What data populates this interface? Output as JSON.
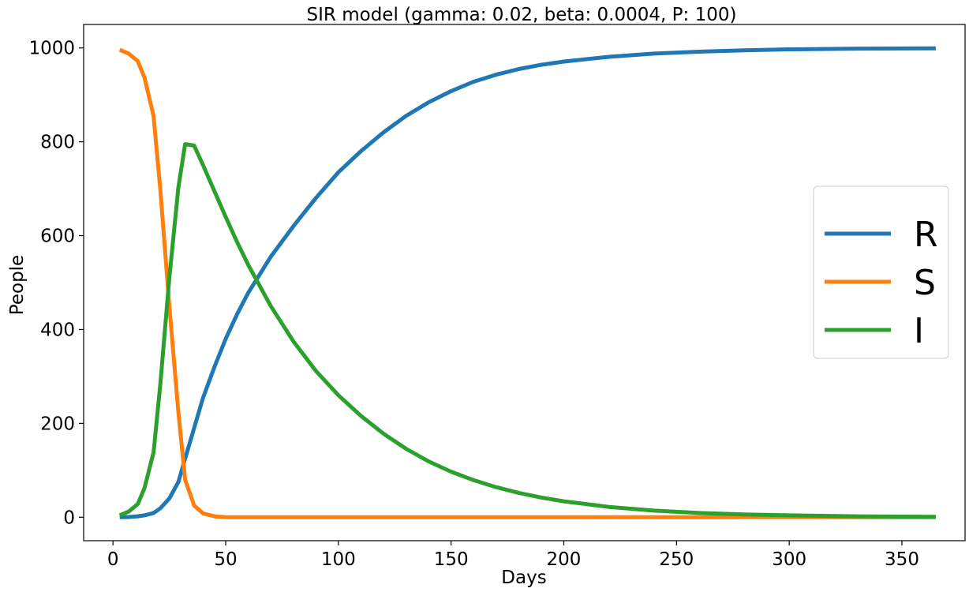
{
  "chart_data": {
    "type": "line",
    "title": "SIR model (gamma: 0.02, beta: 0.0004, P: 100)",
    "xlabel": "Days",
    "ylabel": "People",
    "xlim": [
      -13,
      378
    ],
    "ylim": [
      -50,
      1050
    ],
    "xticks": [
      0,
      50,
      100,
      150,
      200,
      250,
      300,
      350
    ],
    "yticks": [
      0,
      200,
      400,
      600,
      800,
      1000
    ],
    "grid": false,
    "legend_position": "center-right",
    "series": [
      {
        "name": "R",
        "color": "#1f77b4",
        "points": [
          [
            3,
            0
          ],
          [
            7,
            0.5
          ],
          [
            11,
            2
          ],
          [
            14,
            4
          ],
          [
            18,
            9
          ],
          [
            21,
            19
          ],
          [
            25,
            40
          ],
          [
            29,
            75
          ],
          [
            32,
            125
          ],
          [
            36,
            190
          ],
          [
            40,
            255
          ],
          [
            45,
            320
          ],
          [
            50,
            380
          ],
          [
            55,
            432
          ],
          [
            60,
            478
          ],
          [
            70,
            555
          ],
          [
            80,
            620
          ],
          [
            90,
            680
          ],
          [
            100,
            735
          ],
          [
            110,
            780
          ],
          [
            120,
            820
          ],
          [
            130,
            855
          ],
          [
            140,
            884
          ],
          [
            150,
            908
          ],
          [
            160,
            928
          ],
          [
            170,
            943
          ],
          [
            180,
            955
          ],
          [
            190,
            964
          ],
          [
            200,
            971
          ],
          [
            220,
            981
          ],
          [
            240,
            988
          ],
          [
            260,
            992
          ],
          [
            280,
            995
          ],
          [
            300,
            997
          ],
          [
            330,
            998.5
          ],
          [
            365,
            999
          ]
        ]
      },
      {
        "name": "S",
        "color": "#ff7f0e",
        "points": [
          [
            3,
            996
          ],
          [
            7,
            988
          ],
          [
            11,
            972
          ],
          [
            14,
            937
          ],
          [
            18,
            855
          ],
          [
            21,
            700
          ],
          [
            25,
            450
          ],
          [
            29,
            225
          ],
          [
            32,
            80
          ],
          [
            36,
            25
          ],
          [
            40,
            8
          ],
          [
            45,
            2
          ],
          [
            50,
            0
          ],
          [
            60,
            0
          ],
          [
            100,
            0
          ],
          [
            150,
            0
          ],
          [
            200,
            0
          ],
          [
            250,
            0
          ],
          [
            300,
            0
          ],
          [
            365,
            0
          ]
        ]
      },
      {
        "name": "I",
        "color": "#2ca02c",
        "points": [
          [
            3,
            4
          ],
          [
            7,
            12
          ],
          [
            11,
            28
          ],
          [
            14,
            62
          ],
          [
            18,
            138
          ],
          [
            21,
            282
          ],
          [
            25,
            510
          ],
          [
            29,
            702
          ],
          [
            32,
            795
          ],
          [
            36,
            792
          ],
          [
            40,
            750
          ],
          [
            45,
            695
          ],
          [
            50,
            640
          ],
          [
            55,
            587
          ],
          [
            60,
            538
          ],
          [
            70,
            450
          ],
          [
            80,
            375
          ],
          [
            90,
            312
          ],
          [
            100,
            260
          ],
          [
            110,
            216
          ],
          [
            120,
            178
          ],
          [
            130,
            146
          ],
          [
            140,
            119
          ],
          [
            150,
            97
          ],
          [
            160,
            79
          ],
          [
            170,
            64
          ],
          [
            180,
            52
          ],
          [
            190,
            42
          ],
          [
            200,
            34
          ],
          [
            220,
            22
          ],
          [
            240,
            14
          ],
          [
            260,
            9
          ],
          [
            280,
            6
          ],
          [
            300,
            4
          ],
          [
            330,
            2
          ],
          [
            365,
            1
          ]
        ]
      }
    ]
  }
}
